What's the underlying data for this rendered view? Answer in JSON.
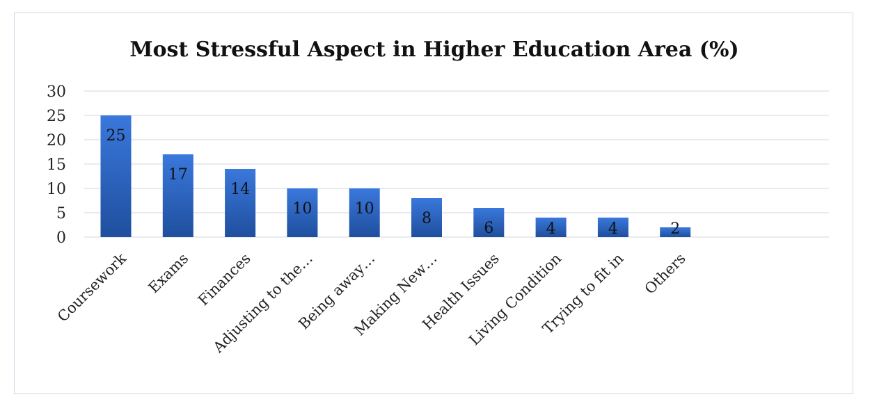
{
  "chart_data": {
    "type": "bar",
    "title": "Most Stressful Aspect in Higher Education Area (%)",
    "xlabel": "",
    "ylabel": "",
    "categories": [
      "Coursework",
      "Exams",
      "Finances",
      "Adjusting to the…",
      "Being away…",
      "Making New…",
      "Health Issues",
      "Living Condition",
      "Trying to fit in",
      "Others"
    ],
    "values": [
      25,
      17,
      14,
      10,
      10,
      8,
      6,
      4,
      4,
      2
    ],
    "ylim": [
      0,
      30
    ],
    "yticks": [
      0,
      5,
      10,
      15,
      20,
      25,
      30
    ],
    "grid": true,
    "legend": "none",
    "bar_color_top": "#3a78dc",
    "bar_color_bottom": "#1f4f9e"
  }
}
